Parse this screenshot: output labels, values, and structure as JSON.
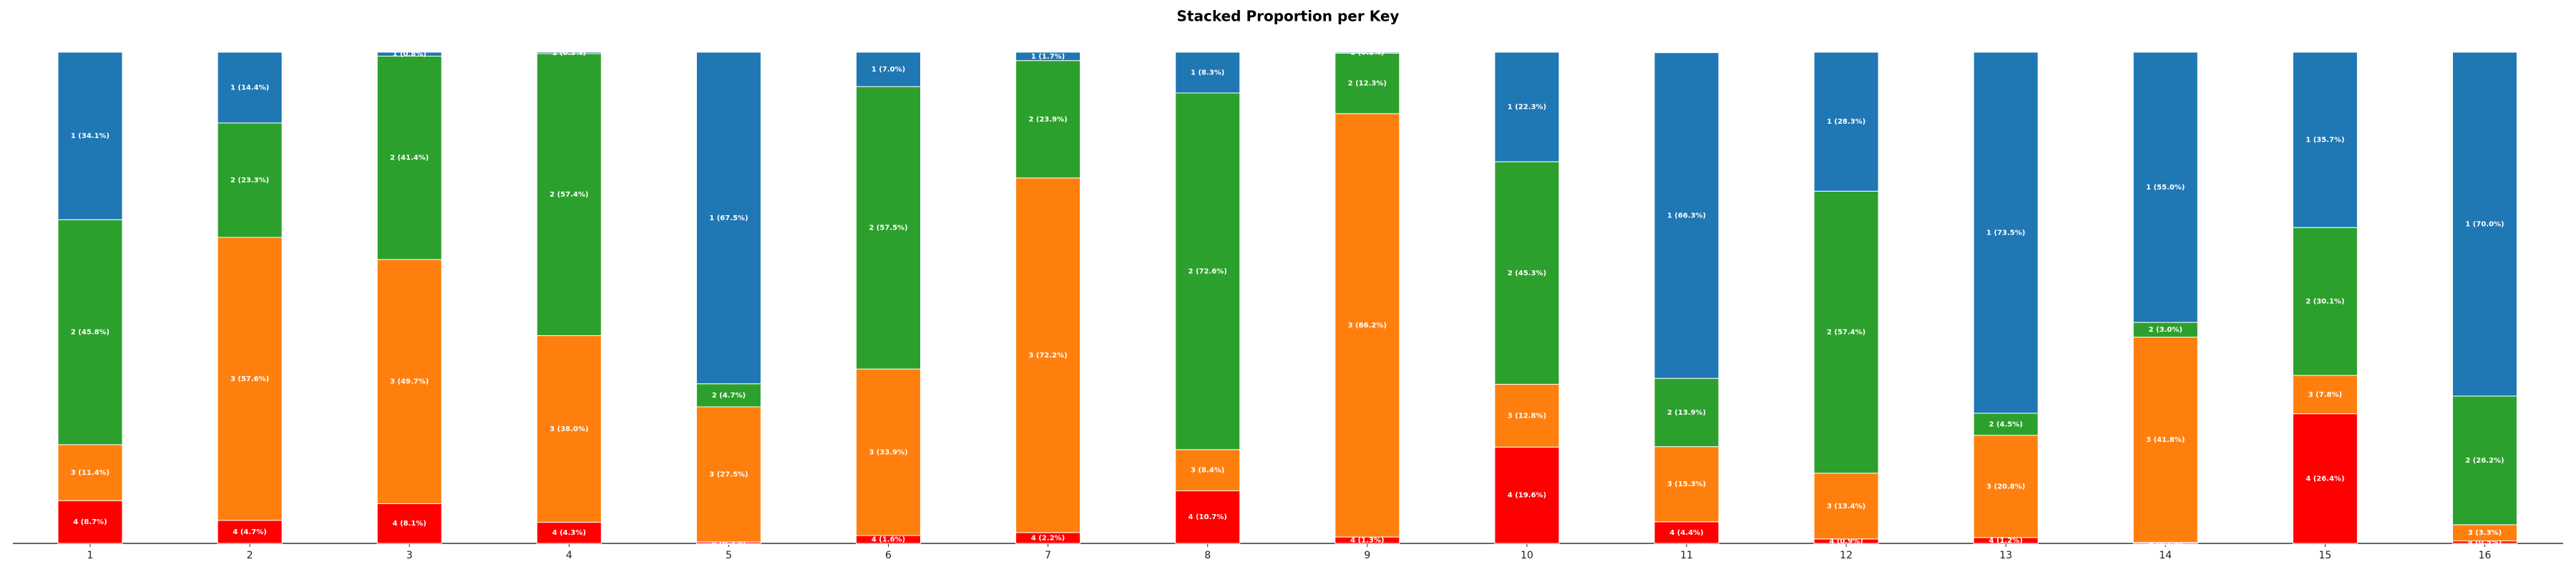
{
  "chart_data": {
    "type": "stacked_bar",
    "title": "Stacked Proportion per Key",
    "categories": [
      "1",
      "2",
      "3",
      "4",
      "5",
      "6",
      "7",
      "8",
      "9",
      "10",
      "11",
      "12",
      "13",
      "14",
      "15",
      "16"
    ],
    "ylim": [
      0,
      100
    ],
    "series": [
      {
        "color": "#ff0000",
        "values": [
          8.7,
          4.7,
          8.1,
          4.3,
          0.3,
          1.6,
          2.2,
          10.7,
          1.3,
          19.6,
          4.4,
          0.9,
          1.2,
          0.2,
          26.4,
          0.5
        ],
        "value_labels": [
          "4 (8.7%)",
          "4 (4.7%)",
          "4 (8.1%)",
          "4 (4.3%)",
          "4 (0.3%)",
          "4 (1.6%)",
          "4 (2.2%)",
          "4 (10.7%)",
          "4 (1.3%)",
          "4 (19.6%)",
          "4 (4.4%)",
          "4 (0.9%)",
          "4 (1.2%)",
          "4 (0.2%)",
          "4 (26.4%)",
          "4 (0.5%)"
        ]
      },
      {
        "color": "#ff7f0e",
        "values": [
          11.4,
          57.6,
          49.7,
          38.0,
          27.5,
          33.9,
          72.2,
          8.4,
          86.2,
          12.8,
          15.3,
          13.4,
          20.8,
          41.8,
          7.8,
          3.3
        ],
        "value_labels": [
          "3 (11.4%)",
          "3 (57.6%)",
          "3 (49.7%)",
          "3 (38.0%)",
          "3 (27.5%)",
          "3 (33.9%)",
          "3 (72.2%)",
          "3 (8.4%)",
          "3 (86.2%)",
          "3 (12.8%)",
          "3 (15.3%)",
          "3 (13.4%)",
          "3 (20.8%)",
          "3 (41.8%)",
          "3 (7.8%)",
          "3 (3.3%)"
        ]
      },
      {
        "color": "#2ca02c",
        "values": [
          45.8,
          23.3,
          41.4,
          57.4,
          4.7,
          57.5,
          23.9,
          72.6,
          12.3,
          45.3,
          13.9,
          57.4,
          4.5,
          3.0,
          30.1,
          26.2
        ],
        "value_labels": [
          "2 (45.8%)",
          "2 (23.3%)",
          "2 (41.4%)",
          "2 (57.4%)",
          "2 (4.7%)",
          "2 (57.5%)",
          "2 (23.9%)",
          "2 (72.6%)",
          "2 (12.3%)",
          "2 (45.3%)",
          "2 (13.9%)",
          "2 (57.4%)",
          "2 (4.5%)",
          "2 (3.0%)",
          "2 (30.1%)",
          "2 (26.2%)"
        ]
      },
      {
        "color": "#1f77b4",
        "values": [
          34.1,
          14.4,
          0.8,
          0.3,
          67.5,
          7.0,
          1.7,
          8.3,
          0.2,
          22.3,
          66.3,
          28.3,
          73.5,
          55.0,
          35.7,
          70.0
        ],
        "value_labels": [
          "1 (34.1%)",
          "1 (14.4%)",
          "1 (0.8%)",
          "1 (0.3%)",
          "1 (67.5%)",
          "1 (7.0%)",
          "1 (1.7%)",
          "1 (8.3%)",
          "1 (0.2%)",
          "1 (22.3%)",
          "1 (66.3%)",
          "1 (28.3%)",
          "1 (73.5%)",
          "1 (55.0%)",
          "1 (35.7%)",
          "1 (70.0%)"
        ]
      }
    ]
  }
}
